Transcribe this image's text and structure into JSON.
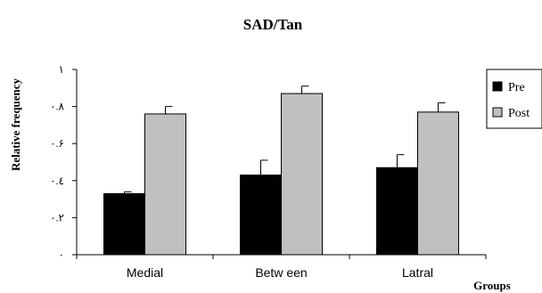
{
  "chart_data": {
    "type": "bar",
    "title": "SAD/Tan",
    "ylabel": "Relative frequency",
    "xlabel": "Groups",
    "ylim": [
      0,
      1
    ],
    "ytick_values": [
      0,
      0.2,
      0.4,
      0.6,
      0.8,
      1
    ],
    "ytick_labels": [
      "٠",
      "٠.٢",
      "٠.٤",
      "٠.۶",
      "٠.٨",
      "١"
    ],
    "categories": [
      "Medial",
      "Betw een",
      "Latral"
    ],
    "series": [
      {
        "name": "Pre",
        "color": "#000000",
        "values": [
          0.33,
          0.43,
          0.47
        ],
        "errors": [
          0.01,
          0.08,
          0.07
        ]
      },
      {
        "name": "Post",
        "color": "#c0c0c0",
        "values": [
          0.76,
          0.87,
          0.77
        ],
        "errors": [
          0.04,
          0.04,
          0.05
        ]
      }
    ],
    "legend_position": "right",
    "grid": false
  }
}
